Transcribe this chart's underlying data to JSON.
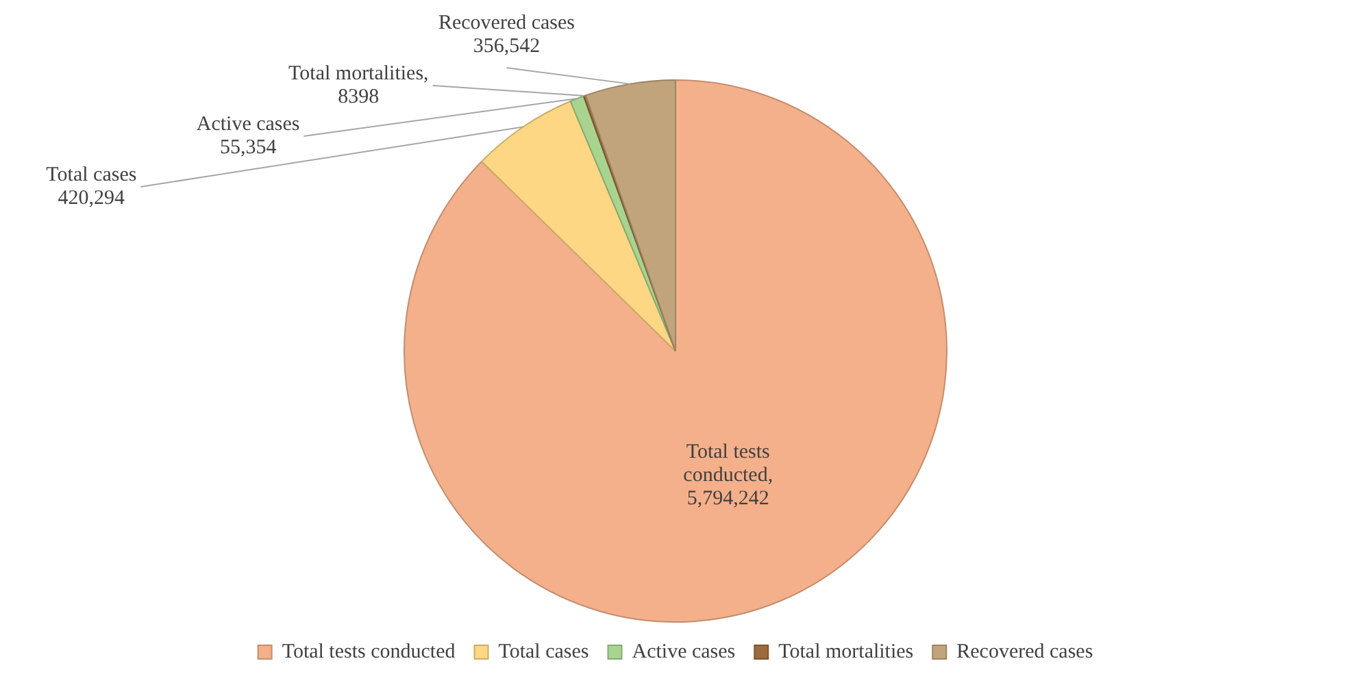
{
  "chart_data": {
    "type": "pie",
    "categories": [
      "Total tests conducted",
      "Total cases",
      "Active cases",
      "Total mortalities",
      "Recovered cases"
    ],
    "values": [
      5794242,
      420294,
      55354,
      8398,
      356542
    ],
    "colors": [
      "#f4b08a",
      "#fdd783",
      "#a9d490",
      "#9c6a3c",
      "#c2a47c"
    ],
    "value_labels": [
      "Total tests\nconducted,\n5,794,242",
      "Total cases\n420,294",
      "Active cases\n55,354",
      "Total mortalities,\n8398",
      "Recovered cases\n356,542"
    ],
    "legend": "bottom"
  }
}
